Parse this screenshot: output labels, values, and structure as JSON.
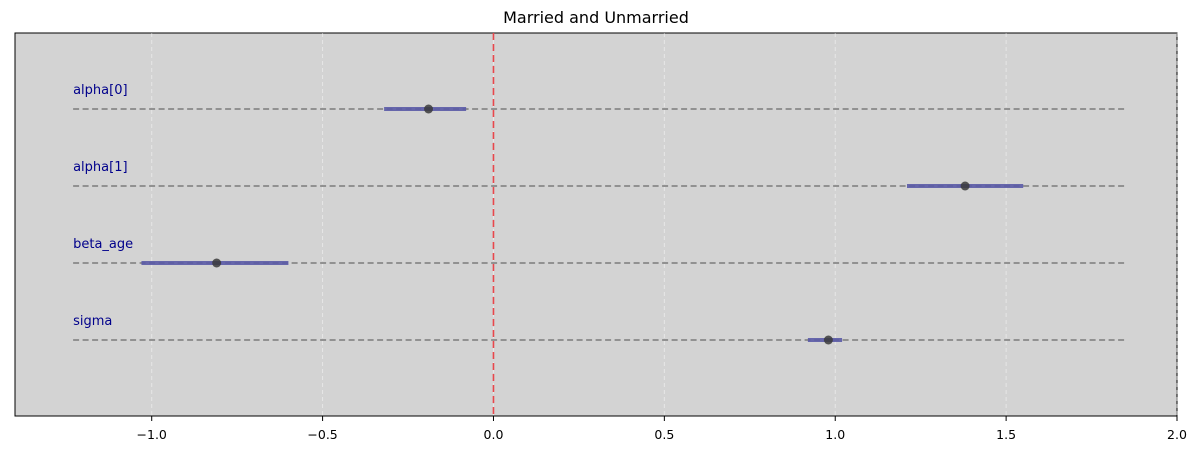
{
  "chart_data": {
    "type": "forest",
    "title": "Married and Unmarried",
    "xlabel": "",
    "ylabel": "",
    "xlim": [
      -1.4,
      2.0
    ],
    "xticks": [
      -1.0,
      -0.5,
      0.0,
      0.5,
      1.0,
      1.5,
      2.0
    ],
    "xtick_labels": [
      "−1.0",
      "−0.5",
      "0.0",
      "0.5",
      "1.0",
      "1.5",
      "2.0"
    ],
    "grid": true,
    "reference_line": {
      "x": 0.0,
      "color": "#e8474c",
      "style": "dashed"
    },
    "row_line_range": [
      -1.23,
      1.85
    ],
    "background_color": "#d3d3d3",
    "interval_color": "#5a5aa6",
    "point_color": "#3a3a3a",
    "label_color": "#00008b",
    "parameters": [
      {
        "label": "alpha[0]",
        "mean": -0.19,
        "lower": -0.32,
        "upper": -0.08
      },
      {
        "label": "alpha[1]",
        "mean": 1.38,
        "lower": 1.21,
        "upper": 1.55
      },
      {
        "label": "beta_age",
        "mean": -0.81,
        "lower": -1.03,
        "upper": -0.6
      },
      {
        "label": "sigma",
        "mean": 0.98,
        "lower": 0.92,
        "upper": 1.02
      }
    ]
  }
}
